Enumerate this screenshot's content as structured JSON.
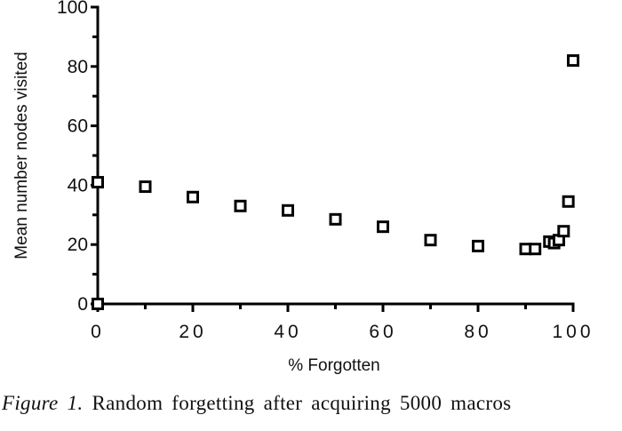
{
  "chart_data": {
    "type": "scatter",
    "title": "",
    "xlabel": "% Forgotten",
    "ylabel": "Mean number nodes visited",
    "xlim": [
      0,
      100
    ],
    "ylim": [
      0,
      100
    ],
    "x_ticks": [
      0,
      20,
      40,
      60,
      80,
      100
    ],
    "x_minor_ticks": [
      10,
      30,
      50,
      70,
      90
    ],
    "y_ticks": [
      0,
      20,
      40,
      60,
      80,
      100
    ],
    "y_minor_ticks": [
      10,
      30,
      50,
      70,
      90
    ],
    "grid": false,
    "legend": null,
    "marker": "open-square",
    "series": [
      {
        "name": "Mean number nodes visited",
        "x": [
          0,
          0,
          10,
          20,
          30,
          40,
          50,
          60,
          70,
          80,
          90,
          92,
          95,
          96,
          97,
          98,
          99,
          100
        ],
        "y": [
          0,
          41,
          39.5,
          36,
          33,
          31.5,
          28.5,
          26,
          21.5,
          19.5,
          18.5,
          18.5,
          21,
          20.5,
          21.5,
          24.5,
          34.5,
          82
        ]
      }
    ]
  },
  "axes": {
    "x_title": "% Forgotten",
    "y_title": "Mean number nodes visited",
    "x_tick_labels": [
      "0",
      "20",
      "40",
      "60",
      "80",
      "100"
    ],
    "y_tick_labels": [
      "0",
      "20",
      "40",
      "60",
      "80",
      "100"
    ]
  },
  "caption": {
    "label": "Figure 1.",
    "text": "Random forgetting after acquiring 5000 macros"
  }
}
